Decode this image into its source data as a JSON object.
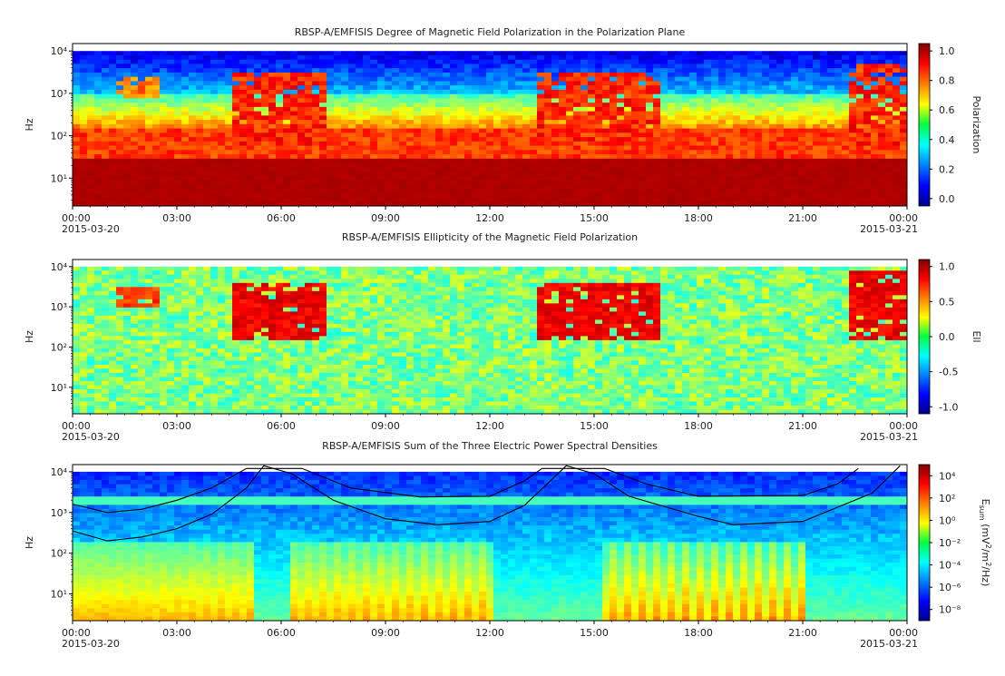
{
  "chart_data": [
    {
      "type": "heatmap",
      "title": "RBSP-A/EMFISIS  Degree of Magnetic Field Polarization in the Polarization Plane",
      "ylabel": "Hz",
      "yscale": "log",
      "ylim": [
        2.2,
        15000
      ],
      "y_ticks": [
        "10¹",
        "10²",
        "10³",
        "10⁴"
      ],
      "x_ticks": [
        "00:00",
        "03:00",
        "06:00",
        "09:00",
        "12:00",
        "15:00",
        "18:00",
        "21:00",
        "00:00"
      ],
      "x_dates": [
        "2015-03-20",
        "2015-03-21"
      ],
      "xlim_hours": [
        0,
        24
      ],
      "colorbar": {
        "label": "Polarization",
        "range": [
          -0.05,
          1.05
        ],
        "ticks": [
          "1.0",
          "0.8",
          "0.6",
          "0.4",
          "0.2",
          "0.0"
        ],
        "colormap": "jet"
      },
      "features": [
        {
          "band_hz": [
            2.2,
            28
          ],
          "value": 1.0
        },
        {
          "band_hz": [
            28,
            150
          ],
          "value": 0.85
        },
        {
          "band_hz": [
            150,
            1000
          ],
          "value": 0.55
        },
        {
          "band_hz": [
            1000,
            10000
          ],
          "value": 0.1
        }
      ],
      "events": [
        {
          "t_hours": [
            4.6,
            7.4
          ],
          "f_hz": [
            60,
            3000
          ],
          "value": 0.95
        },
        {
          "t_hours": [
            13.4,
            16.9
          ],
          "f_hz": [
            60,
            3000
          ],
          "value": 0.95
        },
        {
          "t_hours": [
            22.3,
            23.9
          ],
          "f_hz": [
            60,
            5000
          ],
          "value": 0.95
        },
        {
          "t_hours": [
            1.2,
            2.6
          ],
          "f_hz": [
            800,
            2500
          ],
          "value": 0.85
        }
      ]
    },
    {
      "type": "heatmap",
      "title": "RBSP-A/EMFISIS  Ellipticity of the Magnetic Field Polarization",
      "ylabel": "Hz",
      "yscale": "log",
      "ylim": [
        2.2,
        15000
      ],
      "y_ticks": [
        "10¹",
        "10²",
        "10³",
        "10⁴"
      ],
      "x_ticks": [
        "00:00",
        "03:00",
        "06:00",
        "09:00",
        "12:00",
        "15:00",
        "18:00",
        "21:00",
        "00:00"
      ],
      "x_dates": [
        "2015-03-20",
        "2015-03-21"
      ],
      "xlim_hours": [
        0,
        24
      ],
      "colorbar": {
        "label": "Ell",
        "range": [
          -1.1,
          1.1
        ],
        "ticks": [
          "1.0",
          "0.5",
          "0.0",
          "-0.5",
          "-1.0"
        ],
        "colormap": "jet"
      },
      "background_value": 0.0,
      "events": [
        {
          "t_hours": [
            4.6,
            7.4
          ],
          "f_hz": [
            150,
            4000
          ],
          "value": 0.95
        },
        {
          "t_hours": [
            13.4,
            16.9
          ],
          "f_hz": [
            150,
            4000
          ],
          "value": 0.95
        },
        {
          "t_hours": [
            22.3,
            23.9
          ],
          "f_hz": [
            150,
            8000
          ],
          "value": 0.95
        },
        {
          "t_hours": [
            1.2,
            2.6
          ],
          "f_hz": [
            1000,
            3000
          ],
          "value": 0.8
        }
      ]
    },
    {
      "type": "heatmap",
      "title": "RBSP-A/EMFISIS  Sum of the Three Electric Power Spectral Densities",
      "ylabel": "Hz",
      "yscale": "log",
      "ylim": [
        2.2,
        15000
      ],
      "y_ticks": [
        "10¹",
        "10²",
        "10³",
        "10⁴"
      ],
      "x_ticks": [
        "00:00",
        "03:00",
        "06:00",
        "09:00",
        "12:00",
        "15:00",
        "18:00",
        "21:00",
        "00:00"
      ],
      "x_dates": [
        "2015-03-20",
        "2015-03-21"
      ],
      "xlim_hours": [
        0,
        24
      ],
      "colorbar": {
        "label": "E_sum (mV²/m²/Hz)",
        "label_parts": [
          "E",
          "sum",
          "(mV",
          "2",
          "/m",
          "2",
          "/Hz)"
        ],
        "log_range": [
          -9,
          5
        ],
        "ticks": [
          "10⁴",
          "10²",
          "10⁰",
          "10⁻²",
          "10⁻⁴",
          "10⁻⁶",
          "10⁻⁸"
        ],
        "colormap": "jet"
      },
      "overlay_curves": [
        {
          "name": "upper",
          "points": [
            [
              0,
              1600
            ],
            [
              1,
              1000
            ],
            [
              2,
              1200
            ],
            [
              3,
              2000
            ],
            [
              4,
              4000
            ],
            [
              5,
              12000
            ],
            [
              6.6,
              12000
            ],
            [
              8,
              4000
            ],
            [
              10,
              2400
            ],
            [
              12,
              2500
            ],
            [
              13,
              6000
            ],
            [
              13.5,
              12000
            ],
            [
              15.3,
              12000
            ],
            [
              16.5,
              5000
            ],
            [
              18,
              2500
            ],
            [
              21,
              2600
            ],
            [
              22,
              5000
            ],
            [
              22.6,
              12000
            ]
          ]
        },
        {
          "name": "lower",
          "points": [
            [
              0,
              350
            ],
            [
              1,
              200
            ],
            [
              2,
              250
            ],
            [
              3,
              400
            ],
            [
              4,
              900
            ],
            [
              5,
              4000
            ],
            [
              5.5,
              14000
            ],
            [
              6.3,
              9000
            ],
            [
              7.5,
              2000
            ],
            [
              9,
              700
            ],
            [
              10.5,
              500
            ],
            [
              12,
              600
            ],
            [
              13,
              1500
            ],
            [
              14.2,
              14000
            ],
            [
              15,
              9000
            ],
            [
              16,
              2500
            ],
            [
              18,
              800
            ],
            [
              19,
              500
            ],
            [
              21,
              600
            ],
            [
              23,
              3000
            ],
            [
              23.8,
              14000
            ]
          ]
        }
      ]
    }
  ]
}
